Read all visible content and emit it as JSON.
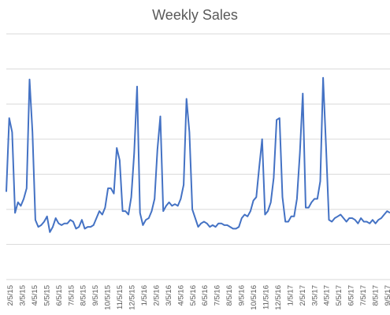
{
  "chart_data": {
    "type": "line",
    "title": "Weekly Sales",
    "xlabel": "",
    "ylabel": "",
    "grid": true,
    "legend": "none",
    "y_tick_labels": [
      "",
      "",
      "",
      "",
      "",
      "",
      "",
      ""
    ],
    "x_tick_labels": [
      "2/5/15",
      "3/5/15",
      "4/5/15",
      "5/5/15",
      "6/5/15",
      "7/5/15",
      "8/5/15",
      "9/5/15",
      "10/5/15",
      "11/5/15",
      "12/5/15",
      "1/5/16",
      "2/5/16",
      "3/5/16",
      "4/5/16",
      "5/5/16",
      "6/5/16",
      "7/5/16",
      "8/5/16",
      "9/5/16",
      "10/5/16",
      "11/5/16",
      "12/5/16",
      "1/5/17",
      "2/5/17",
      "3/5/17",
      "4/5/17",
      "5/5/17",
      "6/5/17",
      "7/5/17",
      "8/5/17",
      "9/5/17"
    ],
    "ylim": [
      0,
      7
    ],
    "series": [
      {
        "color": "#4472c4",
        "values": [
          2.5,
          4.6,
          4.2,
          1.9,
          2.2,
          2.1,
          2.3,
          2.6,
          5.7,
          4.2,
          1.7,
          1.5,
          1.55,
          1.65,
          1.8,
          1.35,
          1.5,
          1.75,
          1.6,
          1.55,
          1.6,
          1.6,
          1.7,
          1.65,
          1.45,
          1.5,
          1.7,
          1.45,
          1.5,
          1.5,
          1.55,
          1.75,
          1.95,
          1.85,
          2.05,
          2.6,
          2.6,
          2.45,
          3.75,
          3.4,
          1.95,
          1.95,
          1.85,
          2.35,
          3.6,
          5.5,
          1.9,
          1.55,
          1.7,
          1.75,
          1.95,
          2.3,
          3.7,
          4.65,
          1.95,
          2.1,
          2.2,
          2.1,
          2.15,
          2.1,
          2.3,
          2.7,
          5.15,
          4.2,
          2.0,
          1.75,
          1.5,
          1.6,
          1.65,
          1.6,
          1.5,
          1.55,
          1.5,
          1.6,
          1.6,
          1.55,
          1.55,
          1.5,
          1.45,
          1.45,
          1.5,
          1.75,
          1.85,
          1.8,
          1.95,
          2.25,
          2.35,
          3.2,
          4.0,
          1.85,
          1.95,
          2.2,
          2.9,
          4.55,
          4.6,
          2.35,
          1.65,
          1.65,
          1.8,
          1.8,
          2.3,
          3.6,
          5.3,
          2.05,
          2.05,
          2.2,
          2.3,
          2.3,
          2.8,
          5.75,
          3.8,
          1.7,
          1.65,
          1.75,
          1.8,
          1.85,
          1.75,
          1.65,
          1.75,
          1.75,
          1.7,
          1.6,
          1.75,
          1.65,
          1.65,
          1.6,
          1.7,
          1.6,
          1.7,
          1.75,
          1.85,
          1.95,
          1.9
        ]
      }
    ]
  }
}
